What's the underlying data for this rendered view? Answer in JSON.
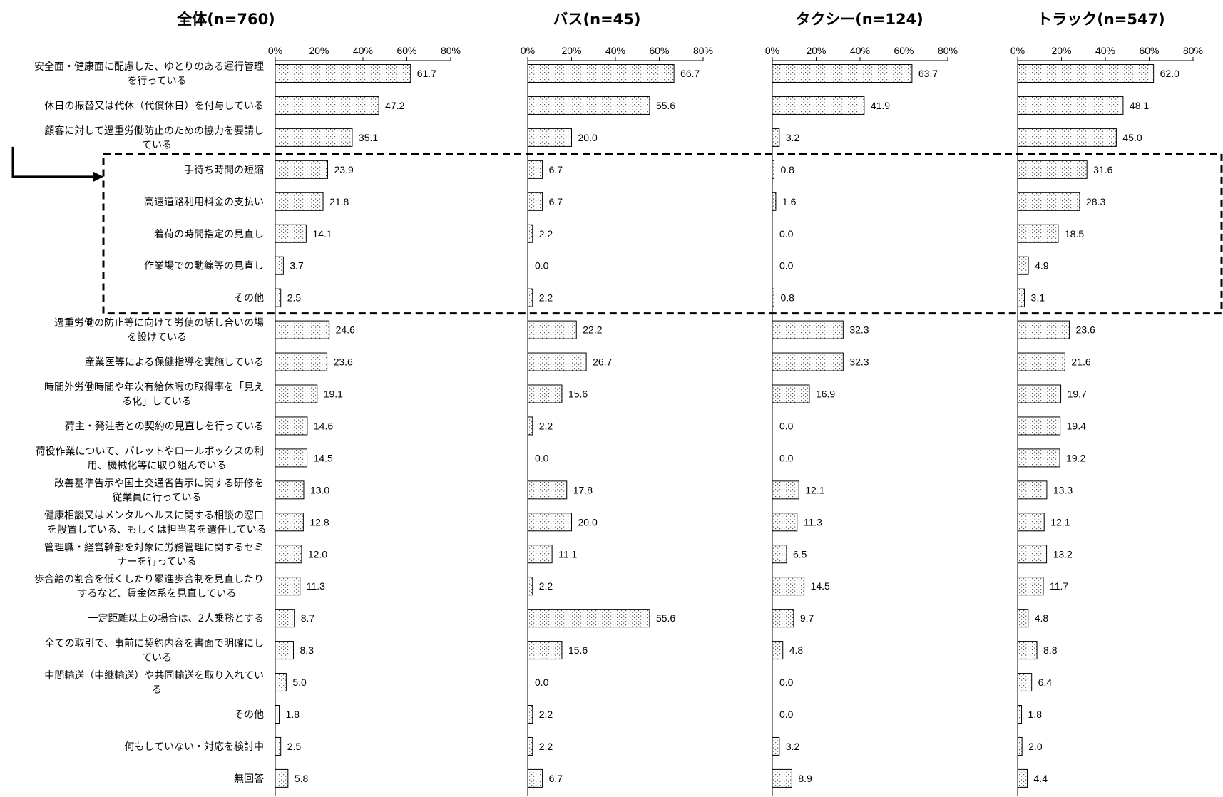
{
  "chart_data": {
    "type": "bar",
    "orientation": "horizontal",
    "xlim": [
      0,
      80
    ],
    "x_ticks": [
      "0%",
      "20%",
      "40%",
      "60%",
      "80%"
    ],
    "legend": "none",
    "grid": false,
    "highlight_box": {
      "style": "dashed",
      "from_category_index": 3,
      "to_category_index": 7,
      "arrow_from_category_index": 2
    },
    "categories": [
      [
        "安全面・健康面に配慮した、ゆとりのある運行管理",
        "を行っている"
      ],
      [
        "休日の振替又は代休（代償休日）を付与している"
      ],
      [
        "顧客に対して過重労働防止のための協力を要請し",
        "ている"
      ],
      [
        "手待ち時間の短縮"
      ],
      [
        "高速道路利用料金の支払い"
      ],
      [
        "着荷の時間指定の見直し"
      ],
      [
        "作業場での動線等の見直し"
      ],
      [
        "その他"
      ],
      [
        "過重労働の防止等に向けて労使の話し合いの場",
        "を設けている"
      ],
      [
        "産業医等による保健指導を実施している"
      ],
      [
        "時間外労働時間や年次有給休暇の取得率を「見え",
        "る化」している"
      ],
      [
        "荷主・発注者との契約の見直しを行っている"
      ],
      [
        "荷役作業について、パレットやロールボックスの利",
        "用、機械化等に取り組んでいる"
      ],
      [
        "改善基準告示や国土交通省告示に関する研修を",
        "従業員に行っている"
      ],
      [
        "健康相談又はメンタルヘルスに関する相談の窓口",
        "を設置している、もしくは担当者を選任している"
      ],
      [
        "管理職・経営幹部を対象に労務管理に関するセミ",
        "ナーを行っている"
      ],
      [
        "歩合給の割合を低くしたり累進歩合制を見直したり",
        "するなど、賃金体系を見直している"
      ],
      [
        "一定距離以上の場合は、2人乗務とする"
      ],
      [
        "全ての取引で、事前に契約内容を書面で明確にし",
        "ている"
      ],
      [
        "中間輸送（中継輸送）や共同輸送を取り入れてい",
        "る"
      ],
      [
        "その他"
      ],
      [
        "何もしていない・対応を検討中"
      ],
      [
        "無回答"
      ]
    ],
    "series": [
      {
        "name": "全体(n=760)",
        "values": [
          61.7,
          47.2,
          35.1,
          23.9,
          21.8,
          14.1,
          3.7,
          2.5,
          24.6,
          23.6,
          19.1,
          14.6,
          14.5,
          13.0,
          12.8,
          12.0,
          11.3,
          8.7,
          8.3,
          5.0,
          1.8,
          2.5,
          5.8
        ]
      },
      {
        "name": "バス(n=45)",
        "values": [
          66.7,
          55.6,
          20.0,
          6.7,
          6.7,
          2.2,
          0.0,
          2.2,
          22.2,
          26.7,
          15.6,
          2.2,
          0.0,
          17.8,
          20.0,
          11.1,
          2.2,
          55.6,
          15.6,
          0.0,
          2.2,
          2.2,
          6.7
        ]
      },
      {
        "name": "タクシー(n=124)",
        "values": [
          63.7,
          41.9,
          3.2,
          0.8,
          1.6,
          0.0,
          0.0,
          0.8,
          32.3,
          32.3,
          16.9,
          0.0,
          0.0,
          12.1,
          11.3,
          6.5,
          14.5,
          9.7,
          4.8,
          0.0,
          0.0,
          3.2,
          8.9
        ]
      },
      {
        "name": "トラック(n=547)",
        "values": [
          62.0,
          48.1,
          45.0,
          31.6,
          28.3,
          18.5,
          4.9,
          3.1,
          23.6,
          21.6,
          19.7,
          19.4,
          19.2,
          13.3,
          12.1,
          13.2,
          11.7,
          4.8,
          8.8,
          6.4,
          1.8,
          2.0,
          4.4
        ]
      }
    ]
  }
}
